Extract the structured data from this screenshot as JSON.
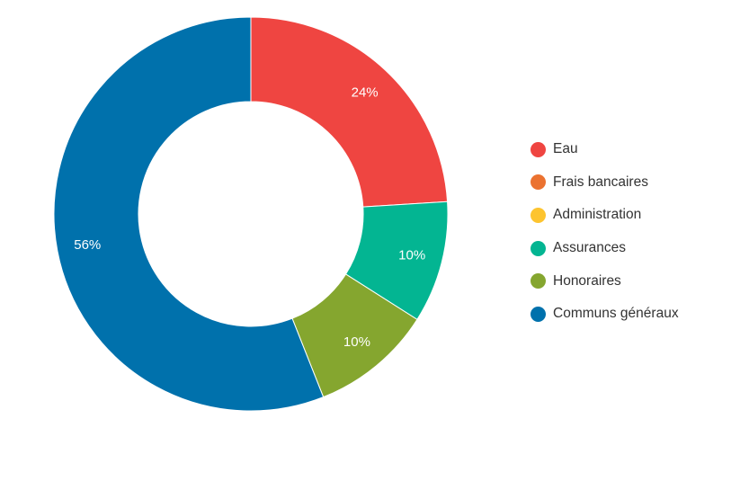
{
  "chart_data": {
    "type": "pie",
    "variant": "donut",
    "categories": [
      "Eau",
      "Frais bancaires",
      "Administration",
      "Assurances",
      "Honoraires",
      "Communs généraux"
    ],
    "values": [
      24,
      0,
      0,
      10,
      10,
      56
    ],
    "unit": "%",
    "data_labels": [
      "24%",
      "",
      "",
      "10%",
      "10%",
      "56%"
    ],
    "colors": [
      "#ef4541",
      "#eb7230",
      "#fdc42f",
      "#03b592",
      "#85a62f",
      "#0071ac"
    ],
    "legend_placement": "right",
    "title": ""
  }
}
